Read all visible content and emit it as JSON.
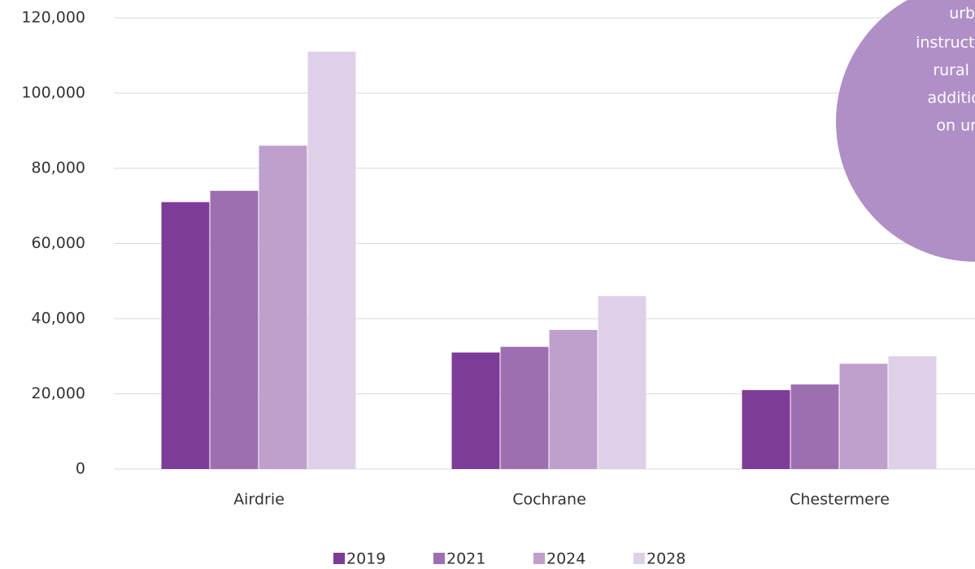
{
  "chart_data": {
    "type": "bar",
    "categories": [
      "Airdrie",
      "Cochrane",
      "Chestermere"
    ],
    "series": [
      {
        "name": "2019",
        "color": "#7d3c98",
        "values": [
          71000,
          31000,
          21000
        ]
      },
      {
        "name": "2021",
        "color": "#9e6fb0",
        "values": [
          74000,
          32500,
          22500
        ]
      },
      {
        "name": "2024",
        "color": "#bf9fcc",
        "values": [
          86000,
          37000,
          28000
        ]
      },
      {
        "name": "2028",
        "color": "#ddd0e7",
        "values": [
          111000,
          46000,
          30000
        ]
      }
    ],
    "ylim": [
      0,
      120000
    ],
    "yticks": [
      0,
      {
        "value": 20000,
        "label": "20,000"
      },
      {
        "value": 40000,
        "label": "40,000"
      },
      {
        "value": 60000,
        "label": "60,000"
      },
      {
        "value": 80000,
        "label": "80,000"
      },
      {
        "value": 100000,
        "label": "100,000"
      },
      {
        "value": 120000,
        "label": "120,000"
      }
    ],
    "grid": true,
    "legend": "bottom",
    "annotation": [
      "urban",
      "instruct stu",
      "rural are",
      "additiona",
      "on urba"
    ]
  }
}
